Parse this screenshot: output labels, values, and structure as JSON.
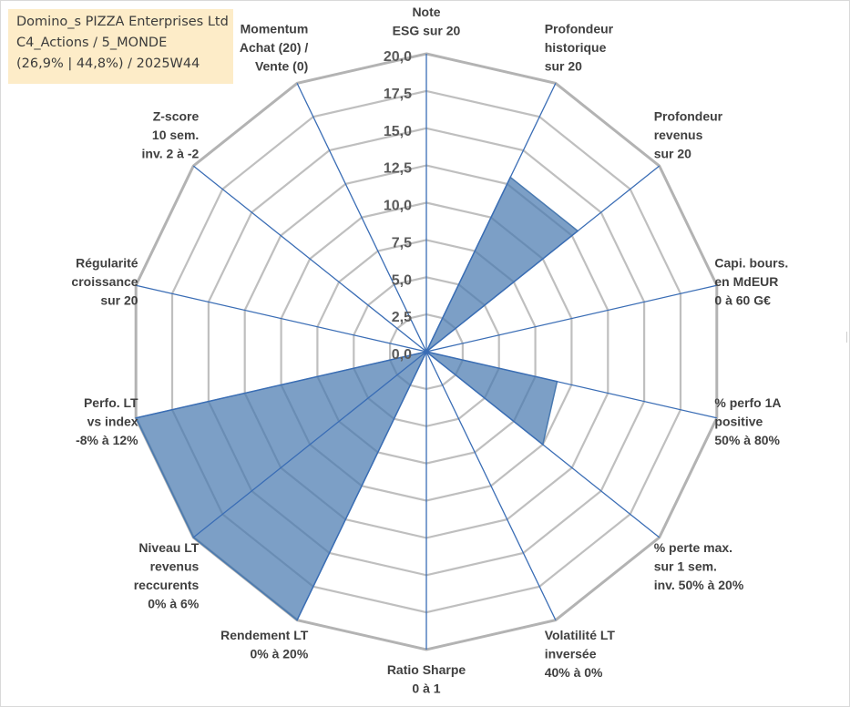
{
  "title": {
    "line1": "Domino_s PIZZA Enterprises Ltd",
    "line2": "C4_Actions / 5_MONDE",
    "line3": "(26,9% | 44,8%) / 2025W44"
  },
  "chart_data": {
    "type": "radar",
    "scale": {
      "min": 0,
      "max": 20,
      "step": 2.5,
      "tick_labels": [
        "0,0",
        "2,5",
        "5,0",
        "7,5",
        "10,0",
        "12,5",
        "15,0",
        "17,5",
        "20,0"
      ]
    },
    "axes": [
      {
        "label": [
          "Note",
          "ESG sur 20"
        ],
        "value": 0
      },
      {
        "label": [
          "Profondeur",
          "historique",
          "sur 20"
        ],
        "value": 13
      },
      {
        "label": [
          "Profondeur",
          "revenus",
          "sur 20"
        ],
        "value": 13
      },
      {
        "label": [
          "Capi. bours.",
          "en MdEUR",
          "0 à 60 G€"
        ],
        "value": 0
      },
      {
        "label": [
          "% perfo 1A",
          "positive",
          "50% à 80%"
        ],
        "value": 9
      },
      {
        "label": [
          "% perte max.",
          "sur 1 sem.",
          "inv. 50% à 20%"
        ],
        "value": 10
      },
      {
        "label": [
          "Volatilité LT",
          "inversée",
          "40% à 0%"
        ],
        "value": 0
      },
      {
        "label": [
          "Ratio Sharpe",
          "0 à 1"
        ],
        "value": 0
      },
      {
        "label": [
          "Rendement LT",
          "0% à 20%"
        ],
        "value": 20
      },
      {
        "label": [
          "Niveau LT",
          "revenus",
          "reccurents",
          "0% à 6%"
        ],
        "value": 20
      },
      {
        "label": [
          "Perfo. LT",
          "vs index",
          "-8% à 12%"
        ],
        "value": 20
      },
      {
        "label": [
          "Régularité",
          "croissance",
          "sur 20"
        ],
        "value": 0
      },
      {
        "label": [
          "Z-score",
          "10 sem.",
          "inv. 2 à -2"
        ],
        "value": 0
      },
      {
        "label": [
          "Momentum",
          "Achat (20) /",
          "Vente (0)"
        ],
        "value": 0
      }
    ],
    "colors": {
      "fill": "#4a7ab0",
      "fill_opacity": 0.72,
      "spoke": "#3a6db5",
      "grid": "#bfbfbf",
      "outer_ring": "#b3b3b3"
    }
  }
}
